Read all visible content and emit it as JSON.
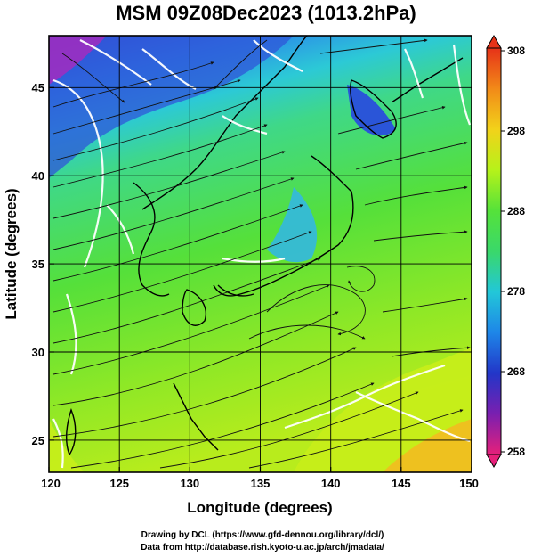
{
  "title": "MSM 09Z08Dec2023 (1013.2hPa)",
  "chart_data": {
    "type": "map",
    "xlabel": "Longitude (degrees)",
    "ylabel": "Latitude  (degrees)",
    "xlim": [
      120,
      150
    ],
    "ylim": [
      22.4,
      47.6
    ],
    "x_ticks": [
      "120",
      "125",
      "130",
      "135",
      "140",
      "145",
      "150"
    ],
    "y_ticks": [
      "25",
      "30",
      "35",
      "40",
      "45"
    ],
    "grid": true,
    "field": "temperature",
    "colorbar": {
      "min": 258,
      "max": 308,
      "ticks": [
        "308",
        "298",
        "288",
        "278",
        "268",
        "258"
      ],
      "colors": [
        "#e6207a",
        "#7a1fb0",
        "#2236c8",
        "#1e86e8",
        "#22c7d8",
        "#3ad86a",
        "#55e23a",
        "#b6f21a",
        "#f2d21a",
        "#f28a18",
        "#e63218"
      ]
    },
    "features": {
      "streamlines": "surface wind",
      "contours": "white isotherms",
      "coastlines": "black"
    }
  },
  "credits": {
    "line1": "Drawing by DCL (https://www.gfd-dennou.org/library/dcl/)",
    "line2": "Data from http://database.rish.kyoto-u.ac.jp/arch/jmadata/"
  }
}
